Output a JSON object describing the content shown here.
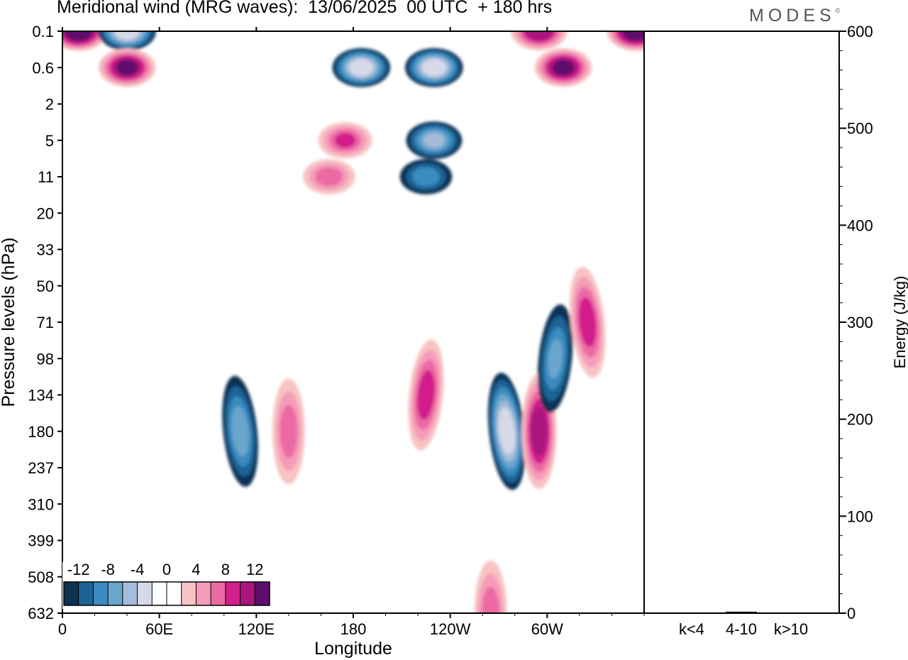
{
  "title": "Meridional wind (MRG waves):  13/06/2025  00 UTC  + 180 hrs",
  "logo": "MODES",
  "colors": {
    "neg": [
      "#0c3352",
      "#1c6496",
      "#3b8bc0",
      "#6aa5cc",
      "#a4bcd9",
      "#d6d9e8"
    ],
    "pos": [
      "#f7c3c3",
      "#f59cb9",
      "#ec6aa4",
      "#d21f8b",
      "#a8157d",
      "#5e0e6d"
    ]
  },
  "chart_data": [
    {
      "type": "heatmap",
      "title": "Meridional wind (MRG waves):  13/06/2025  00 UTC  + 180 hrs",
      "xlabel": "Longitude",
      "ylabel": "Pressure levels (hPa)",
      "x_ticks": [
        "0",
        "60E",
        "120E",
        "180",
        "120W",
        "60W"
      ],
      "y_levels": [
        "0.1",
        "0.6",
        "2",
        "5",
        "11",
        "20",
        "33",
        "50",
        "71",
        "98",
        "134",
        "180",
        "237",
        "310",
        "399",
        "508",
        "632"
      ],
      "colorbar_labels": [
        "-12",
        "-8",
        "-4",
        "0",
        "4",
        "8",
        "12"
      ],
      "colorbar_levels": [
        -14,
        -12,
        -10,
        -8,
        -6,
        -4,
        -2,
        2,
        4,
        6,
        8,
        10,
        12,
        14
      ],
      "features": [
        {
          "lon": 10,
          "level": "0.1",
          "value": 14
        },
        {
          "lon": 40,
          "level": "0.1",
          "value": -13
        },
        {
          "lon": 40,
          "level": "0.6",
          "value": 12
        },
        {
          "lon": 185,
          "level": "0.6",
          "value": -13
        },
        {
          "lon": 230,
          "level": "0.6",
          "value": -13
        },
        {
          "lon": 295,
          "level": "0.1",
          "value": 11
        },
        {
          "lon": 310,
          "level": "0.6",
          "value": 12
        },
        {
          "lon": 355,
          "level": "0.1",
          "value": 14
        },
        {
          "lon": 230,
          "level": "5",
          "value": -10
        },
        {
          "lon": 175,
          "level": "5",
          "value": 8
        },
        {
          "lon": 165,
          "level": "11",
          "value": 7
        },
        {
          "lon": 225,
          "level": "11",
          "value": -7
        },
        {
          "lon": 110,
          "level": "180",
          "value": -9
        },
        {
          "lon": 140,
          "level": "180",
          "value": 7
        },
        {
          "lon": 225,
          "level": "134",
          "value": 9
        },
        {
          "lon": 275,
          "level": "180",
          "value": -13
        },
        {
          "lon": 295,
          "level": "180",
          "value": 11
        },
        {
          "lon": 305,
          "level": "98",
          "value": -8
        },
        {
          "lon": 325,
          "level": "71",
          "value": 9
        },
        {
          "lon": 265,
          "level": "632",
          "value": 7
        }
      ]
    },
    {
      "type": "bar",
      "ylabel": "Energy (J/kg)",
      "categories": [
        "k<4",
        "4-10",
        "k>10"
      ],
      "values": [
        0.5,
        1.5,
        0
      ],
      "ylim": [
        0,
        600
      ],
      "y_ticks": [
        "0",
        "100",
        "200",
        "300",
        "400",
        "500",
        "600"
      ]
    }
  ]
}
